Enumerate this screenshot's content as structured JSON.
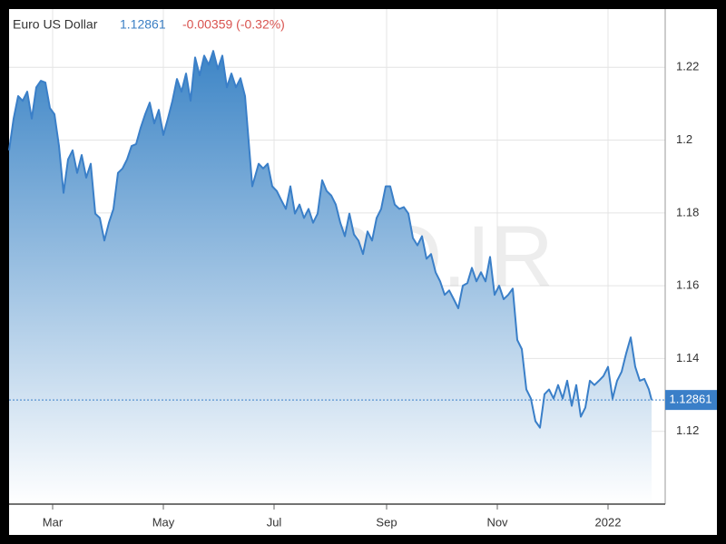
{
  "chart_data": {
    "type": "area",
    "title": "Euro US Dollar",
    "last": "1.12861",
    "change": "-0.00359 (-0.32%)",
    "watermark": "CMPRO.IR",
    "series": [
      {
        "name": "Euro US Dollar",
        "color": "#3a7fc8",
        "x": [
          0,
          2.5,
          5,
          7.5,
          10,
          12.5,
          15,
          17.5,
          20,
          22.5,
          25,
          27.5,
          30,
          32.5,
          35,
          37.5,
          40,
          42.5,
          45,
          47.5,
          50,
          52.5,
          55,
          57.5,
          60,
          62.5,
          65,
          67.5,
          70,
          72.5,
          75,
          77.5,
          80,
          82.5,
          85,
          87.5,
          90,
          92.5,
          95,
          97.5,
          100,
          102.5,
          105,
          107.5,
          110,
          112.5,
          115,
          117.5,
          120,
          122.5,
          125,
          127.5,
          130,
          134,
          137.5,
          140,
          142.5,
          145,
          147.5,
          150,
          152.5,
          155,
          157.5,
          160,
          162.5,
          165,
          167.5,
          170,
          172.5,
          175,
          177.5,
          180,
          182.5,
          185,
          187.5,
          190,
          192.5,
          195,
          197.5,
          200,
          202.5,
          205,
          207.5,
          210,
          212.5,
          215,
          217.5,
          220,
          222.5,
          225,
          227.5,
          230,
          232.5,
          235,
          237.5,
          240,
          242.5,
          245,
          247.5,
          250,
          252.5,
          255,
          257.5,
          260,
          262.5,
          265,
          267.5,
          270,
          272.5,
          275,
          277.5,
          280,
          282.5,
          285,
          287.5,
          290,
          292.5,
          295,
          297.5,
          300,
          302.5,
          305,
          307.5,
          310,
          312.5,
          315,
          317.5,
          320,
          322.5,
          325,
          327.5,
          330,
          332.5,
          335,
          337.5,
          340,
          342.5,
          345,
          347.5,
          350,
          352.5,
          354
        ],
        "values": [
          1.1972,
          1.2059,
          1.2121,
          1.2108,
          1.2133,
          1.2059,
          1.2145,
          1.2163,
          1.2158,
          1.2088,
          1.2071,
          1.1984,
          1.1855,
          1.1947,
          1.1972,
          1.191,
          1.1959,
          1.1897,
          1.1935,
          1.1798,
          1.1786,
          1.1724,
          1.1773,
          1.1811,
          1.191,
          1.1922,
          1.1947,
          1.1984,
          1.1989,
          1.2034,
          1.2071,
          1.2103,
          1.2046,
          1.2083,
          1.2014,
          1.2059,
          1.2108,
          1.2168,
          1.2133,
          1.2183,
          1.2108,
          1.2227,
          1.2178,
          1.2232,
          1.2207,
          1.2245,
          1.2195,
          1.2232,
          1.2145,
          1.2183,
          1.2145,
          1.217,
          1.2121,
          1.1873,
          1.1935,
          1.1922,
          1.1935,
          1.1873,
          1.186,
          1.1835,
          1.1811,
          1.1873,
          1.1798,
          1.1823,
          1.1786,
          1.1811,
          1.1773,
          1.1798,
          1.189,
          1.186,
          1.1848,
          1.1823,
          1.1773,
          1.1736,
          1.1798,
          1.1741,
          1.1724,
          1.1687,
          1.1749,
          1.1724,
          1.1786,
          1.1811,
          1.1873,
          1.1873,
          1.1823,
          1.1811,
          1.1816,
          1.1798,
          1.1731,
          1.1711,
          1.1736,
          1.1674,
          1.1687,
          1.1637,
          1.1612,
          1.1575,
          1.1587,
          1.1563,
          1.1538,
          1.16,
          1.1607,
          1.1649,
          1.1612,
          1.1637,
          1.1612,
          1.1679,
          1.1575,
          1.16,
          1.1563,
          1.1575,
          1.1592,
          1.1451,
          1.1426,
          1.1315,
          1.129,
          1.1228,
          1.121,
          1.1302,
          1.1315,
          1.129,
          1.1327,
          1.129,
          1.1339,
          1.127,
          1.1327,
          1.124,
          1.1265,
          1.1339,
          1.1327,
          1.1339,
          1.1352,
          1.1377,
          1.129,
          1.1339,
          1.1364,
          1.1414,
          1.1458,
          1.1377,
          1.1339,
          1.1344,
          1.1315,
          1.12861
        ]
      }
    ],
    "xlim": [
      0,
      361.5
    ],
    "xticks": [
      {
        "value": 24,
        "label": "Mar"
      },
      {
        "value": 85,
        "label": "May"
      },
      {
        "value": 146,
        "label": "Jul"
      },
      {
        "value": 208,
        "label": "Sep"
      },
      {
        "value": 269,
        "label": "Nov"
      },
      {
        "value": 330,
        "label": "2022"
      }
    ],
    "ylim": [
      1.1,
      1.236
    ],
    "yticks": [
      1.12,
      1.14,
      1.16,
      1.18,
      1.2,
      1.22
    ],
    "grid": true
  }
}
